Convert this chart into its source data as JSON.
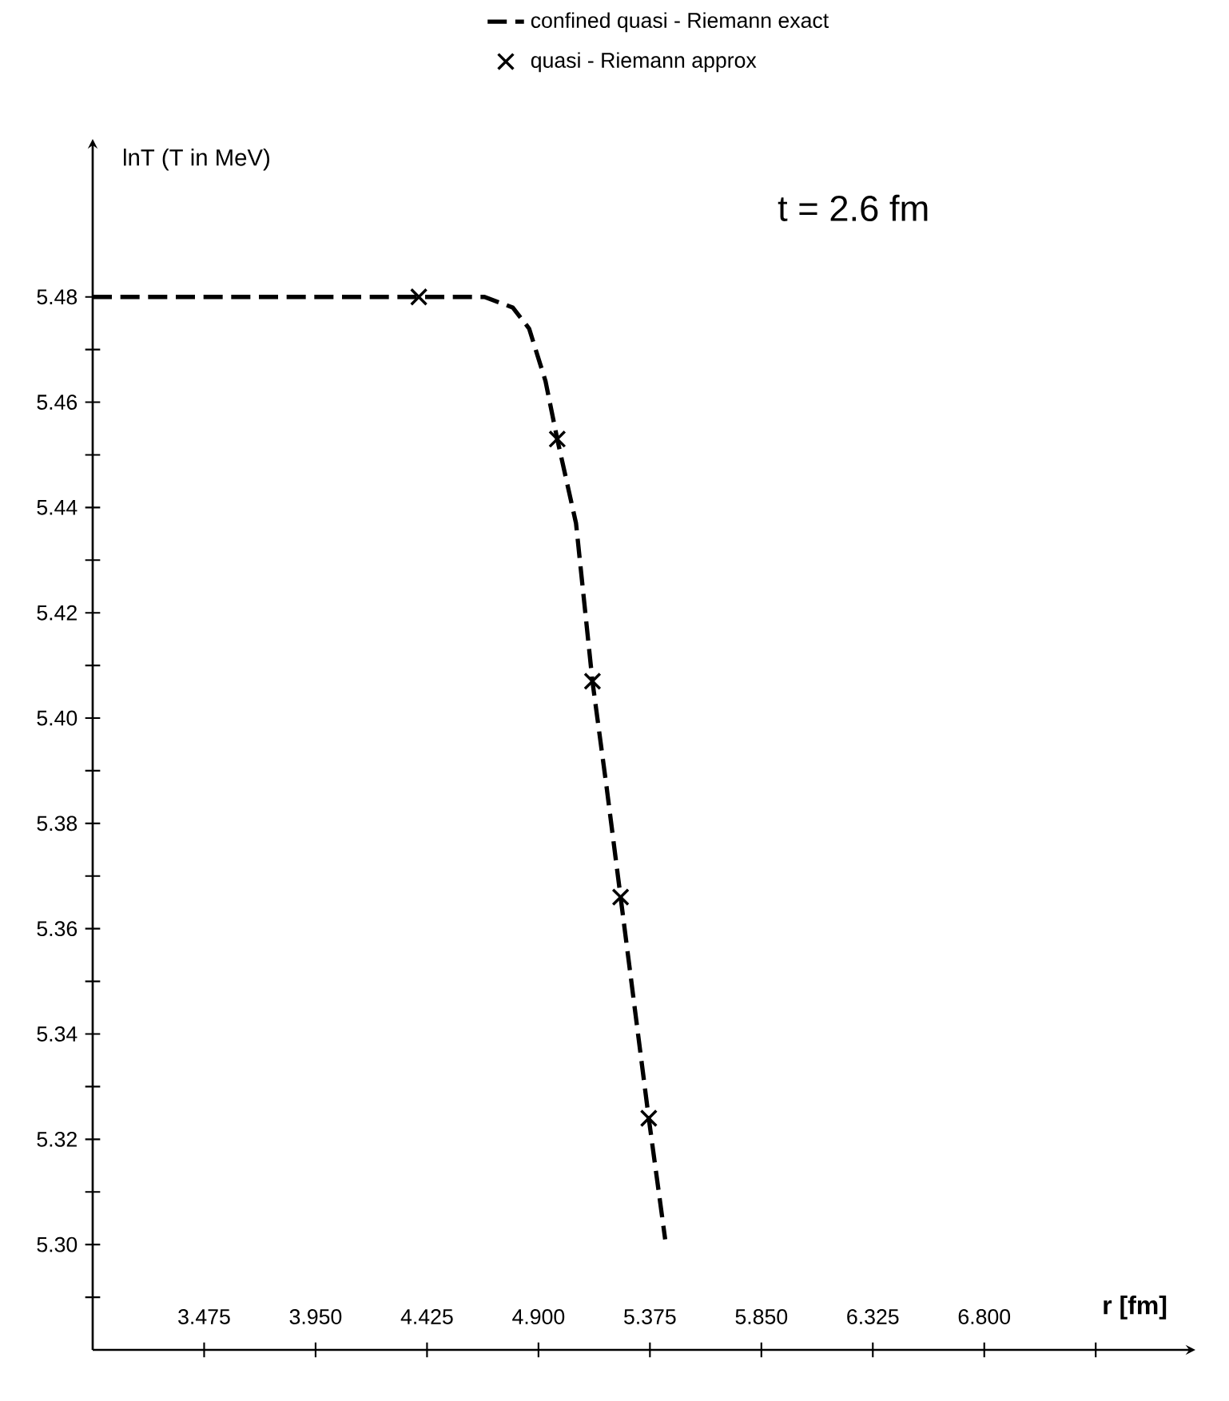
{
  "chart_data": {
    "type": "line",
    "title": "t = 2.6 fm",
    "xlabel": "r [fm]",
    "ylabel": "lnT  (T in MeV)",
    "xlim": [
      3.0,
      7.7
    ],
    "ylim": [
      5.28,
      5.51
    ],
    "xticks": [
      {
        "value": 3.475,
        "label": "3.475"
      },
      {
        "value": 3.95,
        "label": "3.950"
      },
      {
        "value": 4.425,
        "label": "4.425"
      },
      {
        "value": 4.9,
        "label": "4.900"
      },
      {
        "value": 5.375,
        "label": "5.375"
      },
      {
        "value": 5.85,
        "label": "5.850"
      },
      {
        "value": 6.325,
        "label": "6.325"
      },
      {
        "value": 6.8,
        "label": "6.800"
      },
      {
        "value": 7.275,
        "label": null
      }
    ],
    "yticks": [
      {
        "value": 5.29,
        "label": null
      },
      {
        "value": 5.3,
        "label": "5.30"
      },
      {
        "value": 5.31,
        "label": null
      },
      {
        "value": 5.32,
        "label": "5.32"
      },
      {
        "value": 5.33,
        "label": null
      },
      {
        "value": 5.34,
        "label": "5.34"
      },
      {
        "value": 5.35,
        "label": null
      },
      {
        "value": 5.36,
        "label": "5.36"
      },
      {
        "value": 5.37,
        "label": null
      },
      {
        "value": 5.38,
        "label": "5.38"
      },
      {
        "value": 5.39,
        "label": null
      },
      {
        "value": 5.4,
        "label": "5.40"
      },
      {
        "value": 5.41,
        "label": null
      },
      {
        "value": 5.42,
        "label": "5.42"
      },
      {
        "value": 5.43,
        "label": null
      },
      {
        "value": 5.44,
        "label": "5.44"
      },
      {
        "value": 5.45,
        "label": null
      },
      {
        "value": 5.46,
        "label": "5.46"
      },
      {
        "value": 5.47,
        "label": null
      },
      {
        "value": 5.48,
        "label": "5.48"
      }
    ],
    "legend": "top right",
    "series": [
      {
        "name": "confined quasi - Riemann exact",
        "color": "#000000",
        "line_style": "dashed",
        "marker": "none",
        "x": [
          3.0,
          4.67,
          4.79,
          4.86,
          4.93,
          4.98,
          5.06,
          5.13,
          5.19,
          5.25,
          5.37,
          5.44
        ],
        "values": [
          5.48,
          5.48,
          5.478,
          5.474,
          5.464,
          5.453,
          5.437,
          5.407,
          5.387,
          5.366,
          5.324,
          5.301
        ]
      },
      {
        "name": "quasi - Riemann approx",
        "color": "#000000",
        "type": "scatter",
        "marker": "cross",
        "x": [
          4.39,
          4.98,
          5.13,
          5.25,
          5.37
        ],
        "values": [
          5.48,
          5.453,
          5.407,
          5.366,
          5.324
        ]
      }
    ]
  }
}
